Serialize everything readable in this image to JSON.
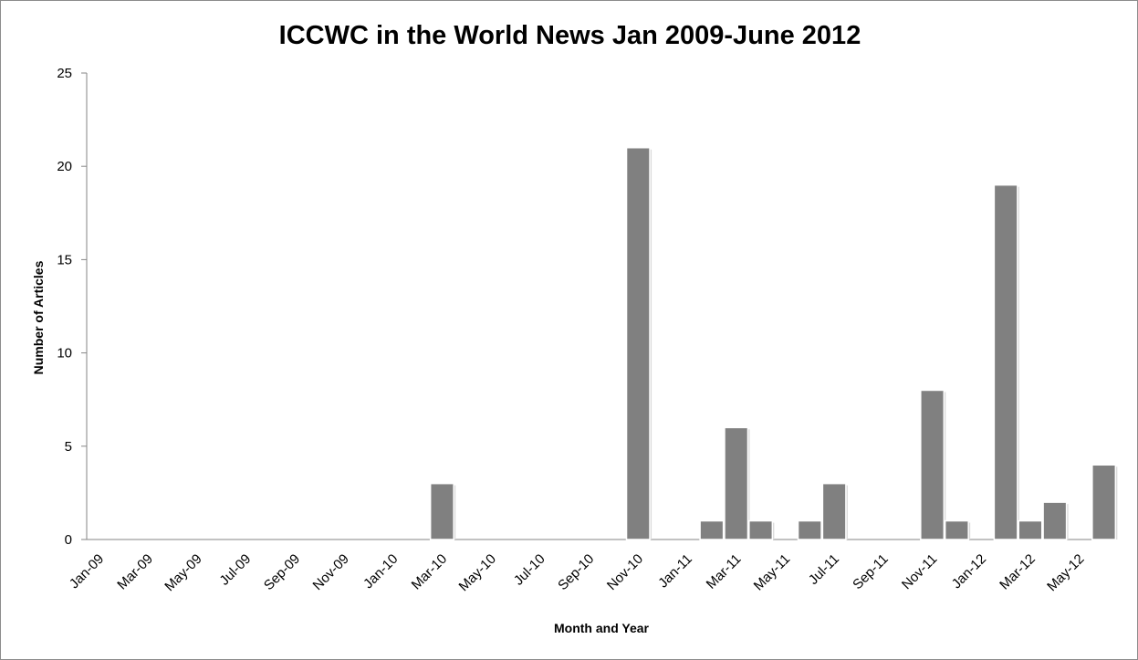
{
  "chart_data": {
    "type": "bar",
    "title": "ICCWC in the World News Jan 2009-June 2012",
    "xlabel": "Month and Year",
    "ylabel": "Number of Articles",
    "ylim": [
      0,
      25
    ],
    "yticks": [
      0,
      5,
      10,
      15,
      20,
      25
    ],
    "categories": [
      "Jan-09",
      "Feb-09",
      "Mar-09",
      "Apr-09",
      "May-09",
      "Jun-09",
      "Jul-09",
      "Aug-09",
      "Sep-09",
      "Oct-09",
      "Nov-09",
      "Dec-09",
      "Jan-10",
      "Feb-10",
      "Mar-10",
      "Apr-10",
      "May-10",
      "Jun-10",
      "Jul-10",
      "Aug-10",
      "Sep-10",
      "Oct-10",
      "Nov-10",
      "Dec-10",
      "Jan-11",
      "Feb-11",
      "Mar-11",
      "Apr-11",
      "May-11",
      "Jun-11",
      "Jul-11",
      "Aug-11",
      "Sep-11",
      "Oct-11",
      "Nov-11",
      "Dec-11",
      "Jan-12",
      "Feb-12",
      "Mar-12",
      "Apr-12",
      "May-12",
      "Jun-12"
    ],
    "x_tick_labels": [
      "Jan-09",
      "Mar-09",
      "May-09",
      "Jul-09",
      "Sep-09",
      "Nov-09",
      "Jan-10",
      "Mar-10",
      "May-10",
      "Jul-10",
      "Sep-10",
      "Nov-10",
      "Jan-11",
      "Mar-11",
      "May-11",
      "Jul-11",
      "Sep-11",
      "Nov-11",
      "Jan-12",
      "Mar-12",
      "May-12"
    ],
    "values": [
      0,
      0,
      0,
      0,
      0,
      0,
      0,
      0,
      0,
      0,
      0,
      0,
      0,
      0,
      3,
      0,
      0,
      0,
      0,
      0,
      0,
      0,
      21,
      0,
      0,
      1,
      6,
      1,
      0,
      1,
      3,
      0,
      0,
      0,
      8,
      1,
      0,
      19,
      1,
      2,
      0,
      4
    ],
    "grid": false,
    "legend": "none",
    "bar_color": "#808080"
  }
}
